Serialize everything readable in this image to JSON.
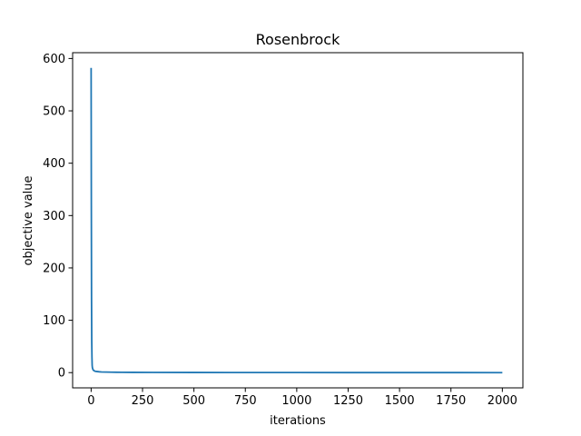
{
  "chart_data": {
    "type": "line",
    "title": "Rosenbrock",
    "xlabel": "iterations",
    "ylabel": "objective value",
    "xlim": [
      -90,
      2100
    ],
    "ylim": [
      -29.1,
      611.1
    ],
    "xticks": [
      0,
      250,
      500,
      750,
      1000,
      1250,
      1500,
      1750,
      2000
    ],
    "yticks": [
      0,
      100,
      200,
      300,
      400,
      500,
      600
    ],
    "grid": false,
    "legend": "none",
    "colors": {
      "line": "#1f77b4",
      "axes": "#000000",
      "background": "#ffffff"
    },
    "series": [
      {
        "x": [
          0,
          1,
          2,
          3,
          4,
          5,
          6,
          8,
          10,
          15,
          20,
          30,
          40,
          50,
          75,
          100,
          150,
          200,
          300,
          500,
          750,
          1000,
          1250,
          1500,
          1750,
          2000
        ],
        "values": [
          582,
          320,
          140,
          60,
          30,
          14,
          10,
          7,
          5,
          3.5,
          2.5,
          2,
          1.6,
          1.3,
          1,
          0.8,
          0.6,
          0.5,
          0.4,
          0.3,
          0.2,
          0.15,
          0.1,
          0.08,
          0.05,
          0.02
        ]
      }
    ]
  }
}
